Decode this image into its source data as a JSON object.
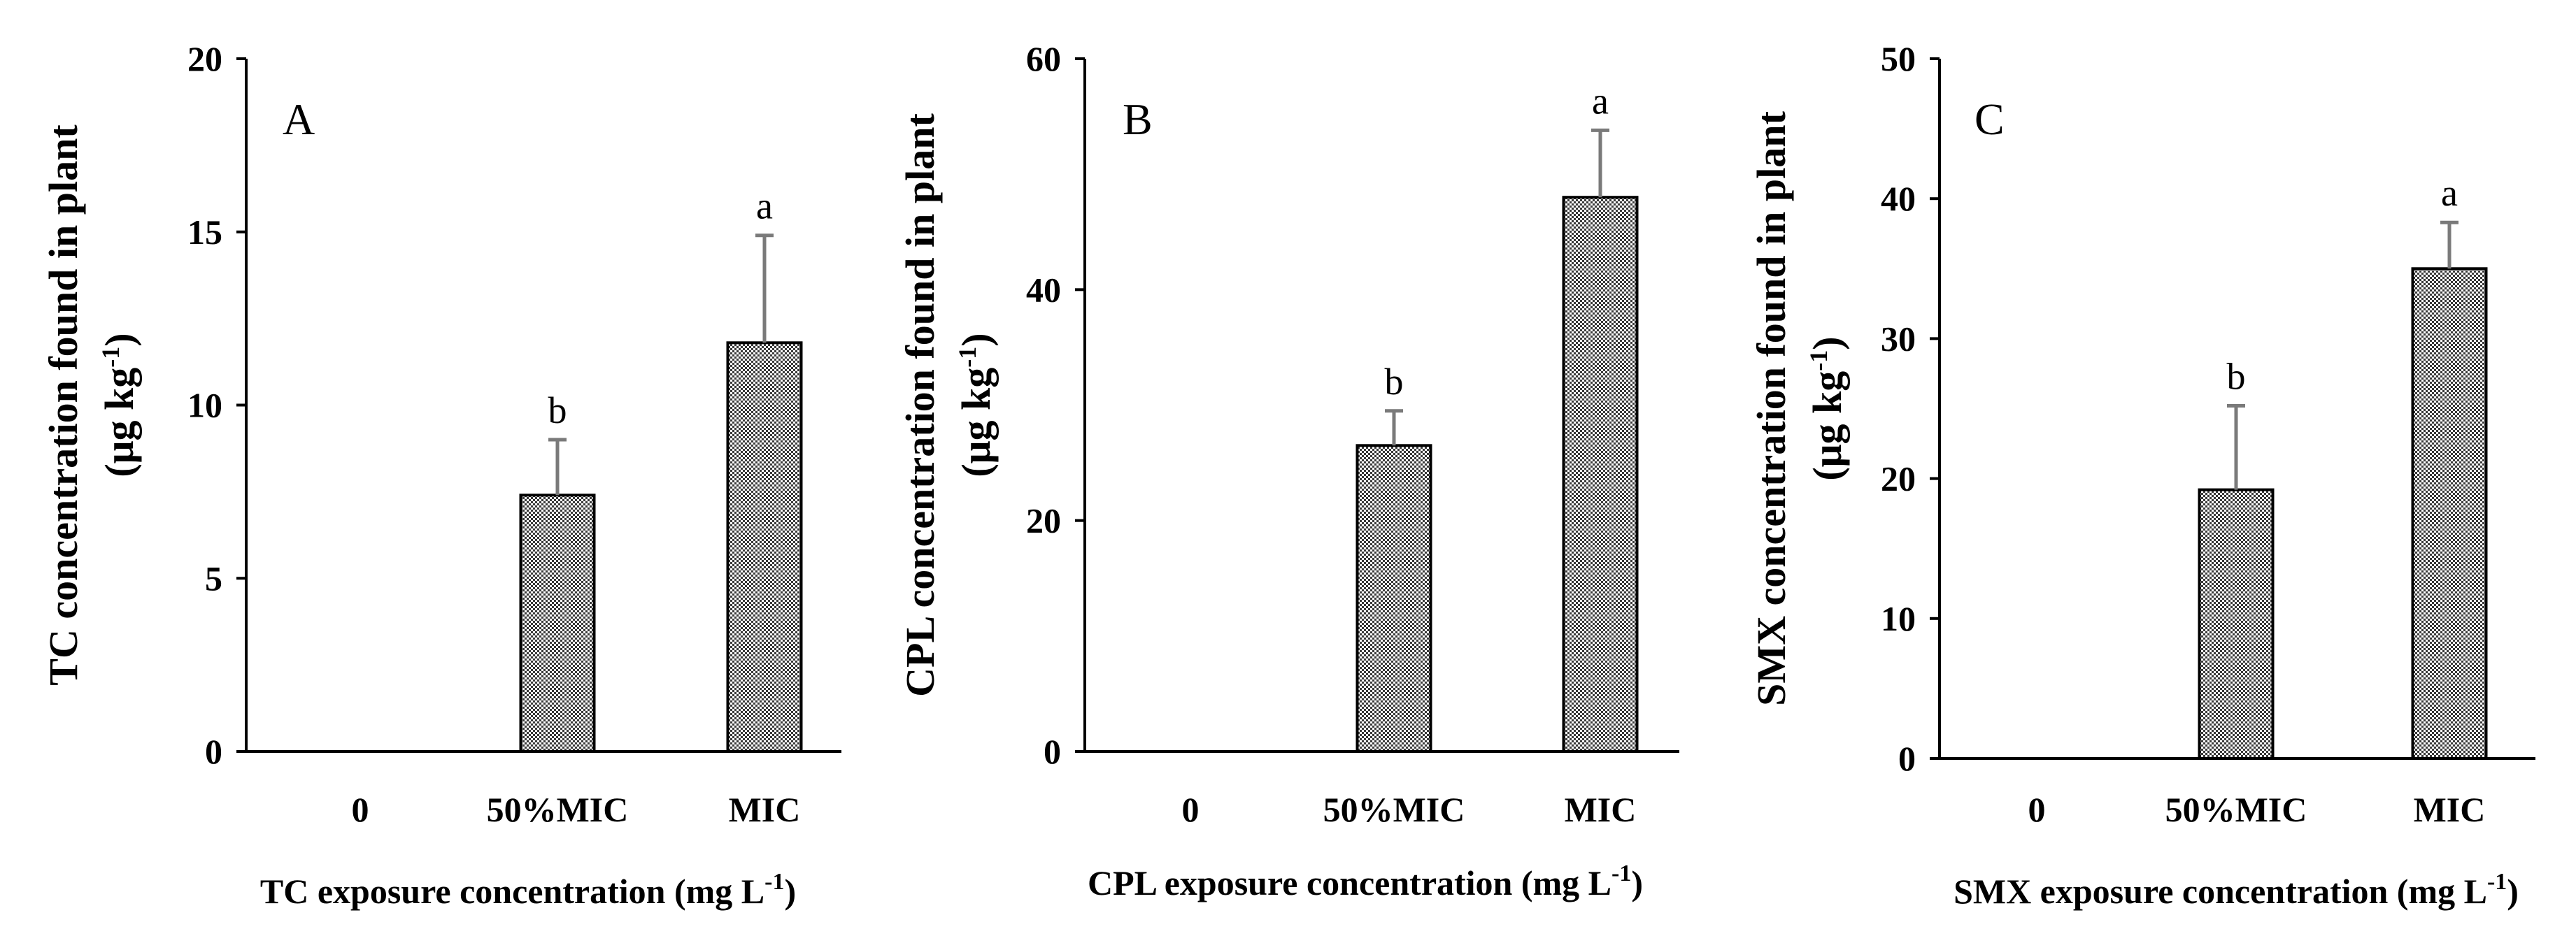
{
  "chart_data": [
    {
      "type": "bar",
      "panel": "A",
      "categories": [
        "0",
        "50%MIC",
        "MIC"
      ],
      "values": [
        0,
        7.4,
        11.8
      ],
      "errors": [
        0,
        1.6,
        3.1
      ],
      "significance": [
        "",
        "b",
        "a"
      ],
      "ylabel": "TC concentration found in plant",
      "ylabel_unit": "(μg kg-1)",
      "ylabel_unit_main": "(μg kg",
      "ylabel_unit_sup": "-1",
      "ylabel_unit_close": ")",
      "xlabel": "TC exposure concentration (mg L-1)",
      "xlabel_main": "TC exposure concentration (mg L",
      "xlabel_sup": "-1",
      "xlabel_close": ")",
      "ylim": [
        0,
        20
      ],
      "yticks": [
        0,
        5,
        10,
        15,
        20
      ],
      "grid": false,
      "bar_color": "#888888"
    },
    {
      "type": "bar",
      "panel": "B",
      "categories": [
        "0",
        "50%MIC",
        "MIC"
      ],
      "values": [
        0,
        26.5,
        48
      ],
      "errors": [
        0,
        3,
        5.8
      ],
      "significance": [
        "",
        "b",
        "a"
      ],
      "ylabel": "CPL concentration found in plant",
      "ylabel_unit": "(μg kg-1)",
      "ylabel_unit_main": "(μg kg",
      "ylabel_unit_sup": "-1",
      "ylabel_unit_close": ")",
      "xlabel": "CPL exposure concentration (mg L-1)",
      "xlabel_main": "CPL exposure concentration (mg L",
      "xlabel_sup": "-1",
      "xlabel_close": ")",
      "ylim": [
        0,
        60
      ],
      "yticks": [
        0,
        20,
        40,
        60
      ],
      "grid": false,
      "bar_color": "#888888"
    },
    {
      "type": "bar",
      "panel": "C",
      "categories": [
        "0",
        "50%MIC",
        "MIC"
      ],
      "values": [
        0,
        19.2,
        35
      ],
      "errors": [
        0,
        6,
        3.3
      ],
      "significance": [
        "",
        "b",
        "a"
      ],
      "ylabel": "SMX concentration found in plant",
      "ylabel_unit": "(μg kg-1)",
      "ylabel_unit_main": "(μg kg",
      "ylabel_unit_sup": "-1",
      "ylabel_unit_close": ")",
      "xlabel": "SMX exposure concentration (mg L-1)",
      "xlabel_main": "SMX exposure concentration (mg L",
      "xlabel_sup": "-1",
      "xlabel_close": ")",
      "ylim": [
        0,
        50
      ],
      "yticks": [
        0,
        10,
        20,
        30,
        40,
        50
      ],
      "grid": false,
      "bar_color": "#888888"
    }
  ]
}
